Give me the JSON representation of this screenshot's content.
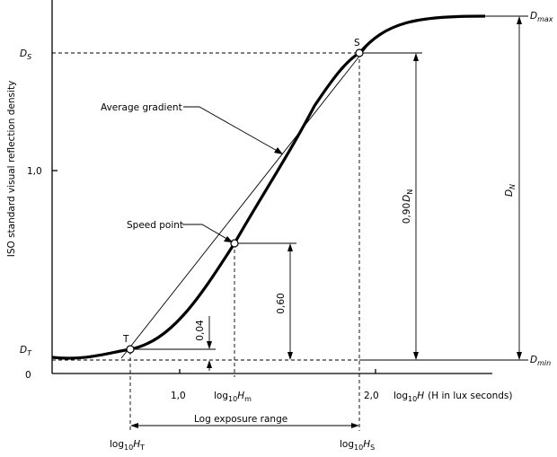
{
  "labels": {
    "y_axis_title": "ISO standard visual reflection density",
    "ds": "D",
    "ds_sub": "S",
    "dt": "D",
    "dt_sub": "T",
    "dmax": "D",
    "dmax_sub": "max",
    "dmin": "D",
    "dmin_sub": "min",
    "dn": "D",
    "dn_sub": "N",
    "y_tick_1": "1,0",
    "y_tick_0": "0",
    "x_tick_1": "1,0",
    "x_tick_2": "2,0",
    "log10H_prefix": "log",
    "log10H_sub": "10",
    "log10H_var": "H",
    "log10H_note": "(H in lux seconds)",
    "log10Hm_var": "H",
    "log10Hm_sub": "m",
    "log10HT_var": "H",
    "log10HT_sub": "T",
    "log10HS_var": "H",
    "log10HS_sub": "S",
    "average_gradient": "Average gradient",
    "speed_point": "Speed point",
    "point_s": "S",
    "point_t": "T",
    "dim_004": "0,04",
    "dim_060": "0,60",
    "dim_090dn_prefix": "0,90",
    "log_exposure_range": "Log exposure range"
  },
  "colors": {
    "ink": "#000000",
    "background": "#ffffff"
  }
}
